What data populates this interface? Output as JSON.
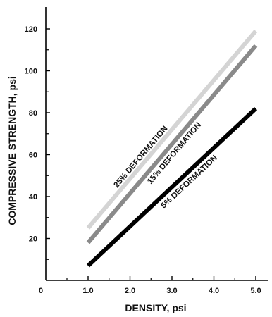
{
  "chart_data": {
    "type": "line",
    "xlabel": "DENSITY, psi",
    "ylabel": "COMPRESSIVE STRENGTH, psi",
    "xlim": [
      0,
      5.0
    ],
    "ylim": [
      0,
      130
    ],
    "x_tick_labels": [
      "0",
      "1.0",
      "2.0",
      "3.0",
      "4.0",
      "5.0"
    ],
    "x_tick_values": [
      0,
      1.0,
      2.0,
      3.0,
      4.0,
      5.0
    ],
    "y_tick_labels": [
      "20",
      "40",
      "60",
      "80",
      "100",
      "120"
    ],
    "y_tick_values": [
      20,
      40,
      60,
      80,
      100,
      120
    ],
    "grid": false,
    "series": [
      {
        "name": "25% DEFORMATION",
        "x": [
          1.0,
          5.0
        ],
        "y": [
          25,
          119
        ],
        "color": "#d4d4d4"
      },
      {
        "name": "15% DEFORMATION",
        "x": [
          1.0,
          5.0
        ],
        "y": [
          18,
          112
        ],
        "color": "#8a8a8a"
      },
      {
        "name": "5% DEFORMATION",
        "x": [
          1.0,
          5.0
        ],
        "y": [
          7,
          82
        ],
        "color": "#000000"
      }
    ]
  }
}
